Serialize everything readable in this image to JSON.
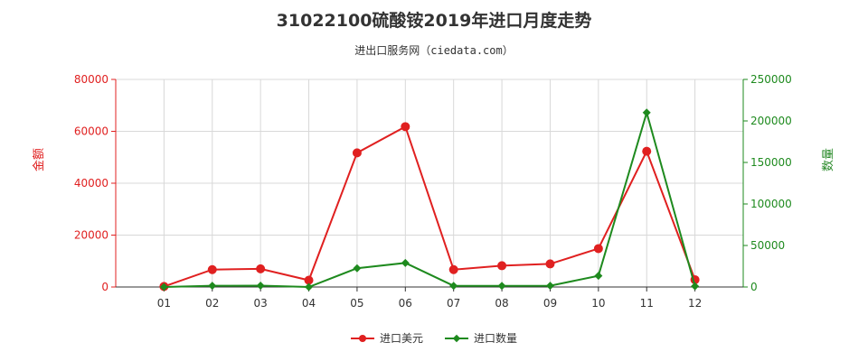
{
  "header": {
    "title": "31022100硫酸铵2019年进口月度走势",
    "subtitle": "进出口服务网（ciedata.com）"
  },
  "colors": {
    "amount": "#e02020",
    "quantity": "#1e8a1e",
    "grid": "#d8d8d8",
    "axis": "#333333"
  },
  "chart_data": {
    "type": "line",
    "categories": [
      "01",
      "02",
      "03",
      "04",
      "05",
      "06",
      "07",
      "08",
      "09",
      "10",
      "11",
      "12"
    ],
    "title": "31022100硫酸铵2019年进口月度走势",
    "xlabel": "",
    "y_left": {
      "label": "金额",
      "lim": [
        0,
        80000
      ],
      "ticks": [
        "0",
        "20000",
        "40000",
        "60000",
        "80000"
      ]
    },
    "y_right": {
      "label": "数量",
      "lim": [
        0,
        250000
      ],
      "ticks": [
        "0",
        "50000",
        "100000",
        "150000",
        "200000",
        "250000"
      ]
    },
    "series": [
      {
        "name": "进口美元",
        "axis": "left",
        "marker": "circle",
        "values": [
          200,
          6700,
          7000,
          2600,
          51700,
          61800,
          6700,
          8200,
          8900,
          14800,
          52300,
          2800
        ]
      },
      {
        "name": "进口数量",
        "axis": "right",
        "marker": "diamond",
        "values": [
          0,
          1500,
          1600,
          0,
          22600,
          29000,
          1400,
          1400,
          1500,
          13500,
          210000,
          1000
        ]
      }
    ],
    "grid": true,
    "legend_position": "bottom-center"
  }
}
